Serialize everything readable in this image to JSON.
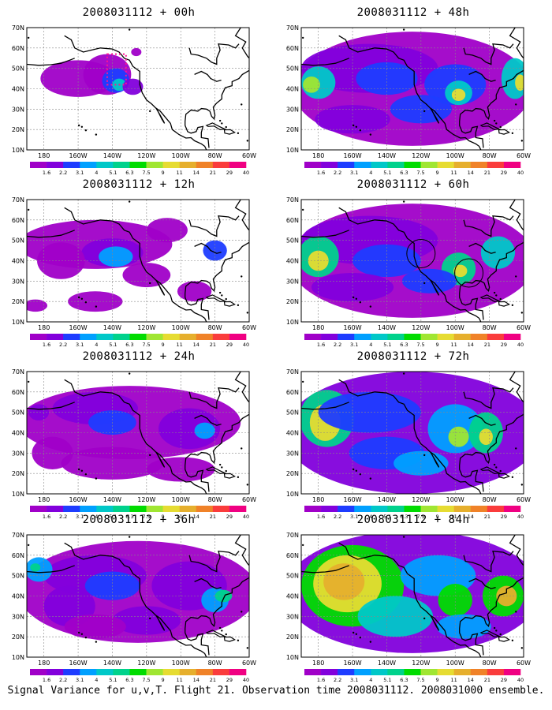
{
  "figure": {
    "caption": "Signal Variance for u,v,T. Flight 21. Observation time 2008031112. 2008031000 ensemble."
  },
  "map_axes": {
    "lat_labels": [
      "10N",
      "20N",
      "30N",
      "40N",
      "50N",
      "60N",
      "70N"
    ],
    "lon_labels": [
      "180",
      "160W",
      "140W",
      "120W",
      "100W",
      "80W",
      "60W"
    ]
  },
  "colorbar": {
    "labels": [
      "1.6",
      "2.2",
      "3.1",
      "4",
      "5.1",
      "6.3",
      "7.5",
      "9",
      "11",
      "14",
      "21",
      "29",
      "40"
    ],
    "colors": [
      "#a000c8",
      "#8200dc",
      "#1e3cff",
      "#00a0ff",
      "#00c8c8",
      "#00d28c",
      "#00dc00",
      "#a0e632",
      "#e6dc32",
      "#e6af2d",
      "#f08228",
      "#fa3c3c",
      "#f00082"
    ]
  },
  "panels": [
    {
      "title": "2008031112 + 00h",
      "level": 0,
      "rings": [],
      "boxes": [
        {
          "lon": [
            -143,
            -132
          ],
          "lat": [
            42,
            57
          ]
        }
      ]
    },
    {
      "title": "2008031112 + 12h",
      "level": 1,
      "rings": [],
      "boxes": []
    },
    {
      "title": "2008031112 + 24h",
      "level": 2,
      "rings": [],
      "boxes": []
    },
    {
      "title": "2008031112 + 36h",
      "level": 3,
      "rings": [],
      "boxes": []
    },
    {
      "title": "2008031112 + 48h",
      "level": 4,
      "rings": [],
      "boxes": []
    },
    {
      "title": "2008031112 + 60h",
      "level": 5,
      "rings": [
        {
          "lon": -120,
          "lat": 43.5
        },
        {
          "lon": -92,
          "lat": 34
        }
      ],
      "boxes": []
    },
    {
      "title": "2008031112 + 72h",
      "level": 6,
      "rings": [],
      "boxes": []
    },
    {
      "title": "2008031112 + 84h",
      "level": 7,
      "rings": [],
      "boxes": []
    }
  ]
}
